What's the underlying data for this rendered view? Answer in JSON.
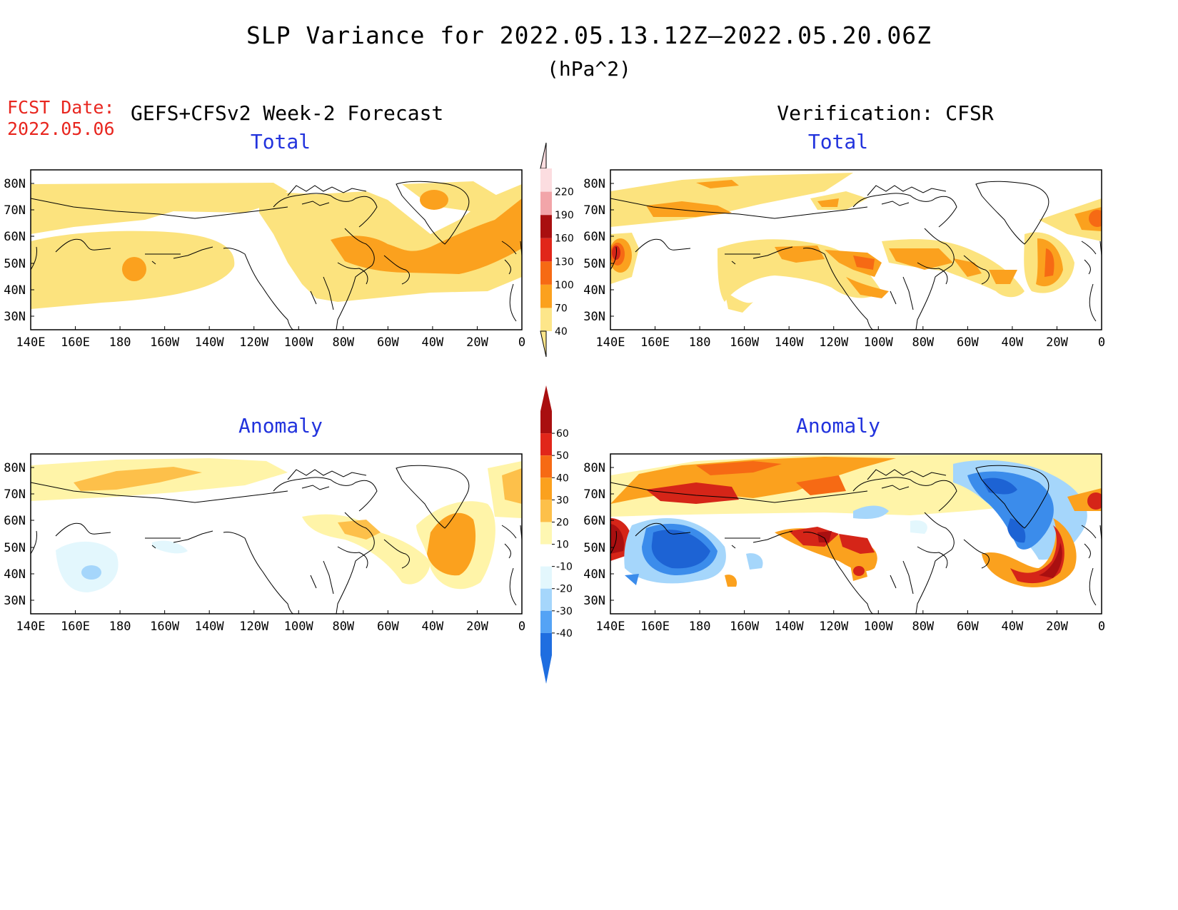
{
  "header": {
    "title": "SLP Variance for 2022.05.13.12Z–2022.05.20.06Z",
    "units": "(hPa^2)",
    "fcst_label_line1": "FCST Date:",
    "fcst_label_line2": "2022.05.06",
    "left_subtitle": "GEFS+CFSv2 Week-2 Forecast",
    "right_subtitle": "Verification: CFSR"
  },
  "panels": {
    "top_left_title": "Total",
    "top_right_title": "Total",
    "bottom_left_title": "Anomaly",
    "bottom_right_title": "Anomaly"
  },
  "axes": {
    "lon_labels": [
      "140E",
      "160E",
      "180",
      "160W",
      "140W",
      "120W",
      "100W",
      "80W",
      "60W",
      "40W",
      "20W",
      "0"
    ],
    "lat_labels": [
      "80N",
      "70N",
      "60N",
      "50N",
      "40N",
      "30N"
    ]
  },
  "colorbars": {
    "total": {
      "levels": [
        "40",
        "70",
        "100",
        "130",
        "160",
        "190",
        "220"
      ],
      "colors": [
        "#fde68a",
        "#fba11e",
        "#f66a14",
        "#e1261a",
        "#a90f10",
        "#f2a5a9",
        "#fcdde0"
      ]
    },
    "anomaly": {
      "levels": [
        "60",
        "50",
        "40",
        "30",
        "20",
        "10",
        "-10",
        "-20",
        "-30",
        "-40"
      ],
      "colors": [
        "#a90f10",
        "#e1261a",
        "#f66a14",
        "#fba11e",
        "#fdc04a",
        "#fef7b2",
        "#ffffff",
        "#e3f7fd",
        "#a5d6fb",
        "#54a3f5",
        "#1f6ee0"
      ]
    }
  },
  "map": {
    "shading_colors": {
      "light_yellow": "#fff4a8",
      "yellow": "#fce37e",
      "orange": "#fba11e",
      "dark_orange": "#f66a14",
      "red": "#d52518",
      "dark_red": "#a90f10",
      "pale_blue": "#e3f7fd",
      "light_blue": "#a5d6fb",
      "blue": "#3b8ceb",
      "dark_blue": "#1d63d4"
    }
  }
}
